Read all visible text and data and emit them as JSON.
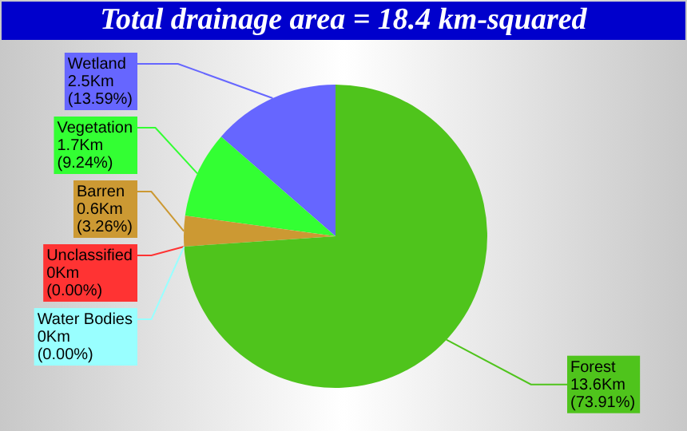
{
  "chart_data": {
    "type": "pie",
    "title": "Total drainage area = 18.4 km-squared",
    "categories": [
      "Wetland",
      "Vegetation",
      "Barren",
      "Unclassified",
      "Water Bodies",
      "Forest"
    ],
    "values": [
      2.5,
      1.7,
      0.6,
      0,
      0,
      13.6
    ],
    "colors": [
      "#6666ff",
      "#33ff33",
      "#cc9933",
      "#ff3333",
      "#99ffff",
      "#4fc41c"
    ],
    "value_labels": [
      "2.5Km (13.59%)",
      "1.7Km (9.24%)",
      "0.6Km (3.26%)",
      "0Km (0.00%)",
      "0Km (0.00%)",
      "13.6Km (73.91%)"
    ]
  }
}
